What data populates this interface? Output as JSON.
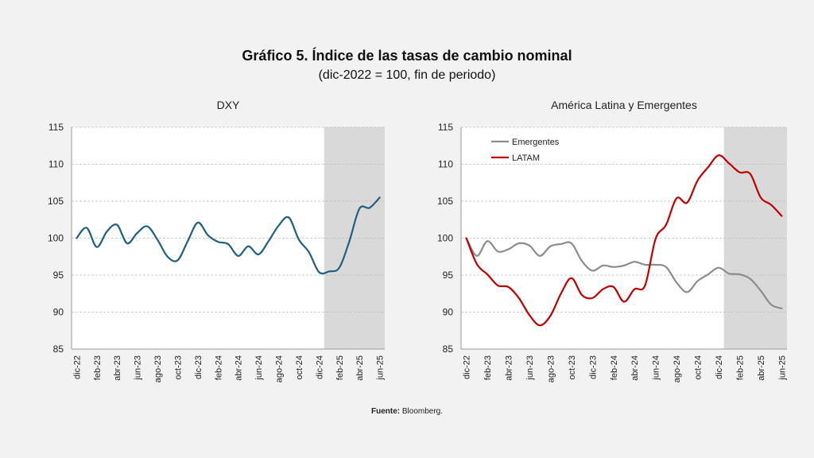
{
  "header": {
    "title": "Gráfico 5. Índice de las tasas de cambio nominal",
    "subtitle": "(dic-2022 = 100, fin de periodo)"
  },
  "source": {
    "label": "Fuente:",
    "text": "Bloomberg."
  },
  "colors": {
    "dxy": "#1f5f7f",
    "emergentes": "#8c8c8c",
    "latam": "#c00000",
    "shade": "#d9d9d9",
    "grid": "#bfbfbf"
  },
  "chart_data": [
    {
      "type": "line",
      "title": "DXY",
      "ylim": [
        85,
        115
      ],
      "yticks": [
        85,
        90,
        95,
        100,
        105,
        110,
        115
      ],
      "xticks": [
        "dic-22",
        "feb-23",
        "abr-23",
        "jun-23",
        "ago-23",
        "oct-23",
        "dic-23",
        "feb-24",
        "abr-24",
        "jun-24",
        "ago-24",
        "oct-24",
        "dic-24",
        "feb-25",
        "abr-25",
        "jun-25"
      ],
      "shaded_period": [
        "ene-25",
        "jun-25"
      ],
      "grid": true,
      "series": [
        {
          "values": [
            100.0,
            101.4,
            98.8,
            100.9,
            101.8,
            99.3,
            100.7,
            101.6,
            99.8,
            97.5,
            97.0,
            99.6,
            102.1,
            100.4,
            99.5,
            99.2,
            97.6,
            98.9,
            97.8,
            99.6,
            101.7,
            102.8,
            99.8,
            98.1,
            95.4,
            95.5,
            96.0,
            99.6,
            104.0,
            104.1,
            105.5
          ]
        }
      ]
    },
    {
      "type": "line",
      "title": "América Latina y Emergentes",
      "ylim": [
        85,
        115
      ],
      "yticks": [
        85,
        90,
        95,
        100,
        105,
        110,
        115
      ],
      "xticks": [
        "dic-22",
        "feb-23",
        "abr-23",
        "jun-23",
        "ago-23",
        "oct-23",
        "dic-23",
        "feb-24",
        "abr-24",
        "jun-24",
        "ago-24",
        "oct-24",
        "dic-24",
        "feb-25",
        "abr-25",
        "jun-25"
      ],
      "shaded_period": [
        "ene-25",
        "jun-25"
      ],
      "grid": true,
      "legend_position": "top-left",
      "series": [
        {
          "name": "Emergentes",
          "values": [
            100.0,
            97.6,
            99.6,
            98.2,
            98.5,
            99.3,
            99.0,
            97.6,
            98.9,
            99.2,
            99.3,
            96.9,
            95.6,
            96.3,
            96.1,
            96.3,
            96.8,
            96.4,
            96.4,
            96.1,
            94.0,
            92.7,
            94.2,
            95.1,
            96.0,
            95.2,
            95.1,
            94.5,
            92.9,
            91.0,
            90.5
          ]
        },
        {
          "name": "LATAM",
          "values": [
            100.0,
            96.5,
            95.1,
            93.6,
            93.4,
            91.9,
            89.6,
            88.2,
            89.5,
            92.5,
            94.6,
            92.3,
            91.9,
            93.1,
            93.4,
            91.4,
            93.1,
            93.6,
            99.9,
            101.8,
            105.4,
            104.8,
            107.8,
            109.6,
            111.2,
            110.1,
            108.9,
            108.7,
            105.5,
            104.5,
            103.0
          ]
        }
      ]
    }
  ]
}
